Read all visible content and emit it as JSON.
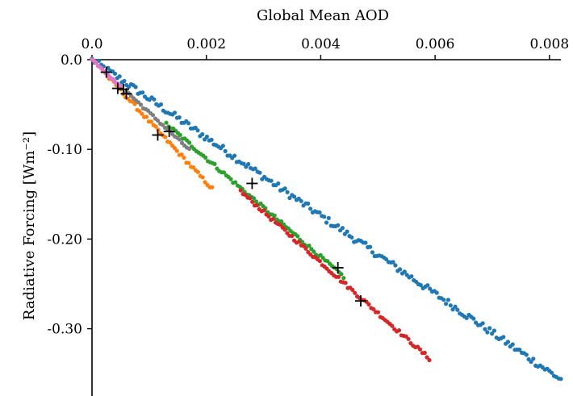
{
  "chart_data": {
    "type": "scatter",
    "title": "",
    "xlabel": "Global Mean AOD",
    "ylabel": "Radiative Forcing [Wm⁻²]",
    "x_axis_position": "top",
    "xlim": [
      0.0,
      0.0082
    ],
    "ylim": [
      -0.375,
      0.0
    ],
    "x_ticks": [
      {
        "value": 0.0,
        "label": "0.0"
      },
      {
        "value": 0.002,
        "label": "0.002"
      },
      {
        "value": 0.004,
        "label": "0.004"
      },
      {
        "value": 0.006,
        "label": "0.006"
      },
      {
        "value": 0.008,
        "label": "0.008"
      }
    ],
    "y_ticks": [
      {
        "value": 0.0,
        "label": "0.0"
      },
      {
        "value": -0.1,
        "label": "-0.10"
      },
      {
        "value": -0.2,
        "label": "-0.20"
      },
      {
        "value": -0.3,
        "label": "-0.30"
      }
    ],
    "grid": false,
    "legend": "none",
    "series": [
      {
        "color": "#1f77b4",
        "x_range": [
          0.0,
          0.0082
        ],
        "slope": -43.5,
        "noise": 0.004
      },
      {
        "color": "#ff7f0e",
        "x_range": [
          0.0003,
          0.0021
        ],
        "slope": -68.5,
        "noise": 0.002
      },
      {
        "color": "#2ca02c",
        "x_range": [
          0.0013,
          0.0044
        ],
        "slope": -55.0,
        "noise": 0.002
      },
      {
        "color": "#d62728",
        "x_range": [
          0.0026,
          0.0059
        ],
        "slope": -56.5,
        "noise": 0.002
      },
      {
        "color": "#7f7f7f",
        "x_range": [
          0.0006,
          0.0017
        ],
        "slope": -59.0,
        "noise": 0.0015
      },
      {
        "color": "#e377c2",
        "x_range": [
          0.0,
          0.0005
        ],
        "slope": -60.0,
        "noise": 0.001
      }
    ],
    "markers": {
      "symbol": "+",
      "color": "#000000",
      "points": [
        [
          0.00025,
          -0.014
        ],
        [
          0.00045,
          -0.032
        ],
        [
          0.00055,
          -0.033
        ],
        [
          0.0006,
          -0.038
        ],
        [
          0.00115,
          -0.084
        ],
        [
          0.00135,
          -0.08
        ],
        [
          0.0028,
          -0.138
        ],
        [
          0.0043,
          -0.232
        ],
        [
          0.0047,
          -0.269
        ]
      ]
    }
  }
}
